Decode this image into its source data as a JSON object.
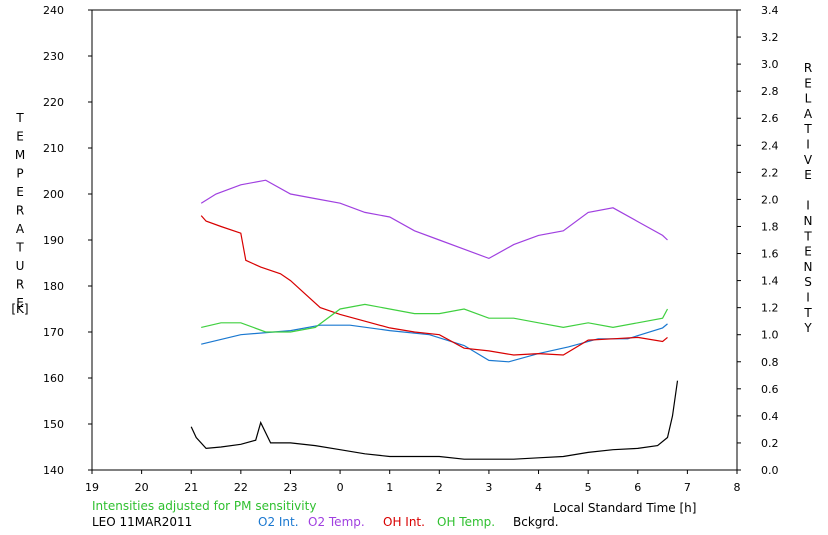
{
  "chart_data": {
    "type": "line",
    "xlabel": "Local Standard Time [h]",
    "ylabel_left": "TEMPERATURE",
    "ylabel_left_unit": "[K]",
    "ylabel_right": "RELATIVE INTENSITY",
    "x_ticks": [
      "19",
      "20",
      "21",
      "22",
      "23",
      "0",
      "1",
      "2",
      "3",
      "4",
      "5",
      "6",
      "7",
      "8"
    ],
    "xlim": [
      19,
      8
    ],
    "ylim_left": [
      140,
      240
    ],
    "left_ticks": [
      "140",
      "150",
      "160",
      "170",
      "180",
      "190",
      "200",
      "210",
      "220",
      "230",
      "240"
    ],
    "ylim_right": [
      0.0,
      3.4
    ],
    "right_ticks": [
      "0.0",
      "0.2",
      "0.4",
      "0.6",
      "0.8",
      "1.0",
      "1.2",
      "1.4",
      "1.6",
      "1.8",
      "2.0",
      "2.2",
      "2.4",
      "2.6",
      "2.8",
      "3.0",
      "3.2",
      "3.4"
    ],
    "grid": false,
    "series": [
      {
        "name": "O2 Int.",
        "color": "#1a78d0",
        "axis": "right",
        "x": [
          21.2,
          22.0,
          23.0,
          23.6,
          24.2,
          25.0,
          25.8,
          26.5,
          27.0,
          27.4,
          28.0,
          28.6,
          29.2,
          29.8,
          30.5,
          30.6
        ],
        "y": [
          0.93,
          1.0,
          1.03,
          1.07,
          1.07,
          1.03,
          1.0,
          0.92,
          0.81,
          0.8,
          0.86,
          0.91,
          0.97,
          0.97,
          1.05,
          1.08
        ]
      },
      {
        "name": "O2 Temp.",
        "color": "#a040e0",
        "axis": "left",
        "x": [
          21.2,
          21.5,
          22.0,
          22.5,
          23.0,
          23.5,
          24.0,
          24.5,
          25.0,
          25.5,
          26.0,
          26.5,
          27.0,
          27.5,
          28.0,
          28.5,
          29.0,
          29.5,
          30.0,
          30.5,
          30.6
        ],
        "y": [
          198,
          200,
          202,
          203,
          200,
          199,
          198,
          196,
          195,
          192,
          190,
          188,
          186,
          189,
          191,
          192,
          196,
          197,
          194,
          191,
          190
        ]
      },
      {
        "name": "OH Int.",
        "color": "#d80000",
        "axis": "right",
        "x": [
          21.2,
          21.3,
          21.6,
          22.0,
          22.1,
          22.4,
          22.8,
          23.0,
          23.3,
          23.6,
          24.0,
          24.5,
          25.0,
          25.5,
          26.0,
          26.5,
          27.0,
          27.5,
          28.0,
          28.5,
          29.0,
          29.5,
          30.0,
          30.5,
          30.6
        ],
        "y": [
          1.88,
          1.84,
          1.8,
          1.75,
          1.55,
          1.5,
          1.45,
          1.4,
          1.3,
          1.2,
          1.15,
          1.1,
          1.05,
          1.02,
          1.0,
          0.9,
          0.88,
          0.85,
          0.86,
          0.85,
          0.96,
          0.97,
          0.98,
          0.95,
          0.98
        ]
      },
      {
        "name": "OH Temp.",
        "color": "#40d040",
        "axis": "left",
        "x": [
          21.2,
          21.6,
          22.0,
          22.5,
          23.0,
          23.5,
          24.0,
          24.5,
          25.0,
          25.5,
          26.0,
          26.5,
          27.0,
          27.5,
          28.0,
          28.5,
          29.0,
          29.5,
          30.0,
          30.5,
          30.6
        ],
        "y": [
          171,
          172,
          172,
          170,
          170,
          171,
          175,
          176,
          175,
          174,
          174,
          175,
          173,
          173,
          172,
          171,
          172,
          171,
          172,
          173,
          175
        ]
      },
      {
        "name": "Bckgrd.",
        "color": "#000000",
        "axis": "right",
        "x": [
          21.0,
          21.1,
          21.3,
          21.6,
          22.0,
          22.3,
          22.4,
          22.6,
          23.0,
          23.5,
          24.0,
          24.5,
          25.0,
          25.5,
          26.0,
          26.5,
          27.0,
          27.5,
          28.0,
          28.5,
          29.0,
          29.5,
          30.0,
          30.4,
          30.6,
          30.7,
          30.8
        ],
        "y": [
          0.32,
          0.24,
          0.16,
          0.17,
          0.19,
          0.22,
          0.35,
          0.2,
          0.2,
          0.18,
          0.15,
          0.12,
          0.1,
          0.1,
          0.1,
          0.08,
          0.08,
          0.08,
          0.09,
          0.1,
          0.13,
          0.15,
          0.16,
          0.18,
          0.24,
          0.4,
          0.66
        ]
      }
    ],
    "annotations": [
      "Intensities adjusted for PM sensitivity",
      "LEO 11MAR2011"
    ]
  }
}
